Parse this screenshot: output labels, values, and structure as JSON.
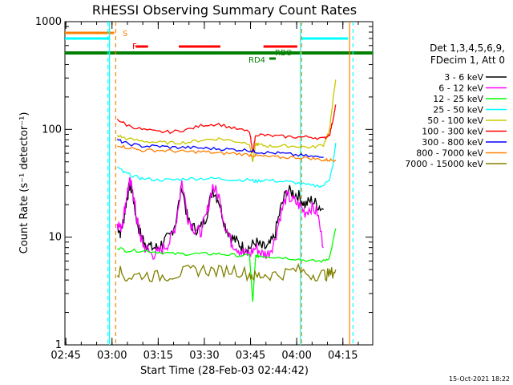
{
  "chart_data": {
    "type": "line",
    "title": "RHESSI Observing Summary Count Rates",
    "xlabel": "Start Time (28-Feb-03 02:44:42)",
    "ylabel": "Count Rate (s⁻¹ detector⁻¹)",
    "y_scale": "log",
    "ylim": [
      1,
      1000
    ],
    "xlim_minutes": [
      0,
      100
    ],
    "x_ticks": [
      {
        "minute": 0.3,
        "label": "02:45"
      },
      {
        "minute": 15.3,
        "label": "03:00"
      },
      {
        "minute": 30.3,
        "label": "03:15"
      },
      {
        "minute": 45.3,
        "label": "03:30"
      },
      {
        "minute": 60.3,
        "label": "03:45"
      },
      {
        "minute": 75.3,
        "label": "04:00"
      },
      {
        "minute": 90.3,
        "label": "04:15"
      }
    ],
    "y_ticks": [
      {
        "value": 1,
        "label": "1"
      },
      {
        "value": 10,
        "label": "10"
      },
      {
        "value": 100,
        "label": "100"
      },
      {
        "value": 1000,
        "label": "1000"
      }
    ],
    "legend_header": [
      "Det 1,3,4,5,6,9,",
      "FDecim 1, Att 0"
    ],
    "legend_placement": "right",
    "series": [
      {
        "name": "3 - 6 keV",
        "color": "#000000",
        "x": [
          17,
          18,
          19,
          20,
          21,
          22,
          23,
          24,
          25,
          26,
          28,
          30,
          32,
          34,
          36,
          38,
          40,
          42,
          44,
          46,
          48,
          50,
          52,
          54,
          56,
          58,
          60,
          62,
          64,
          66,
          68,
          70,
          72,
          74,
          76,
          78,
          80,
          82,
          84
        ],
        "y": [
          13,
          11,
          14,
          22,
          30,
          26,
          16,
          12,
          10,
          9,
          8,
          8,
          9,
          10,
          14,
          30,
          14,
          12,
          12,
          16,
          28,
          22,
          13,
          10,
          9,
          8,
          8,
          9,
          8,
          8,
          10,
          18,
          27,
          26,
          24,
          20,
          22,
          20,
          18
        ]
      },
      {
        "name": "6 - 12 keV",
        "color": "#ff00ff",
        "x": [
          17,
          18,
          19,
          20,
          21,
          22,
          23,
          24,
          25,
          26,
          28,
          30,
          32,
          34,
          36,
          38,
          40,
          42,
          44,
          46,
          48,
          50,
          52,
          54,
          56,
          58,
          60,
          62,
          64,
          66,
          68,
          70,
          72,
          74,
          76,
          78,
          80,
          82,
          84
        ],
        "y": [
          14,
          12,
          15,
          24,
          32,
          28,
          17,
          12,
          9,
          8,
          7,
          7,
          8,
          9,
          13,
          33,
          15,
          12,
          11,
          16,
          30,
          24,
          13,
          9,
          8,
          7,
          7,
          8,
          7,
          7,
          9,
          16,
          24,
          22,
          20,
          17,
          19,
          17,
          8
        ]
      },
      {
        "name": "12 - 25 keV",
        "color": "#00ff00",
        "x": [
          17,
          20,
          25,
          30,
          35,
          40,
          45,
          50,
          55,
          60,
          61,
          62,
          63,
          66,
          70,
          75,
          80,
          84,
          86,
          88
        ],
        "y": [
          8,
          7.5,
          7.5,
          7.3,
          7,
          7,
          7,
          7,
          6.8,
          6.7,
          2.5,
          6.7,
          6.7,
          6.6,
          6.5,
          6.3,
          6,
          6,
          6.5,
          12
        ]
      },
      {
        "name": "25 - 50 keV",
        "color": "#00ffff",
        "x": [
          17,
          19,
          22,
          25,
          30,
          35,
          40,
          45,
          50,
          55,
          60,
          62,
          65,
          70,
          75,
          80,
          84,
          86,
          87,
          88
        ],
        "y": [
          45,
          40,
          37,
          35,
          34,
          34,
          35,
          35,
          35,
          34,
          34,
          33,
          34,
          33,
          32,
          30,
          30,
          35,
          45,
          75
        ]
      },
      {
        "name": "50 - 100 keV",
        "color": "#c8c800",
        "x": [
          17,
          20,
          25,
          30,
          35,
          40,
          45,
          50,
          55,
          60,
          61,
          62,
          63,
          66,
          70,
          75,
          80,
          84,
          86,
          87,
          88
        ],
        "y": [
          88,
          82,
          78,
          76,
          75,
          76,
          80,
          82,
          78,
          74,
          50,
          73,
          72,
          70,
          70,
          70,
          68,
          72,
          100,
          180,
          290
        ]
      },
      {
        "name": "100 - 300 keV",
        "color": "#ff0000",
        "x": [
          17,
          20,
          25,
          30,
          35,
          40,
          45,
          50,
          55,
          60,
          61,
          62,
          65,
          70,
          75,
          80,
          84,
          86,
          87,
          88
        ],
        "y": [
          125,
          110,
          100,
          95,
          95,
          100,
          110,
          112,
          102,
          95,
          60,
          90,
          88,
          86,
          85,
          85,
          82,
          90,
          120,
          170
        ]
      },
      {
        "name": "300 - 800 keV",
        "color": "#0000ff",
        "x": [
          17,
          20,
          25,
          30,
          35,
          40,
          45,
          50,
          55,
          60,
          62,
          65,
          70,
          75,
          80,
          84
        ],
        "y": [
          80,
          74,
          70,
          70,
          68,
          68,
          67,
          66,
          65,
          64,
          62,
          61,
          60,
          58,
          56,
          55
        ]
      },
      {
        "name": "800 - 7000 keV",
        "color": "#ff8000",
        "x": [
          17,
          20,
          25,
          30,
          35,
          40,
          45,
          50,
          55,
          60,
          62,
          65,
          70,
          75,
          80,
          84,
          86,
          88
        ],
        "y": [
          72,
          68,
          64,
          64,
          63,
          62,
          62,
          60,
          60,
          58,
          57,
          56,
          55,
          55,
          54,
          52,
          52,
          52
        ]
      },
      {
        "name": "7000 - 15000 keV",
        "color": "#808000",
        "x": [
          17,
          20,
          25,
          30,
          35,
          40,
          45,
          50,
          55,
          60,
          62,
          65,
          70,
          75,
          80,
          84,
          86,
          88
        ],
        "y": [
          5,
          4.2,
          4.5,
          4.3,
          4.5,
          4.8,
          5,
          4.8,
          5,
          4.5,
          4.3,
          4.5,
          4.5,
          5,
          4.5,
          4.5,
          4.5,
          5
        ]
      }
    ],
    "annotations": [
      {
        "label": "S",
        "color": "#ff8000"
      },
      {
        "label": "F",
        "color": "#ff0000"
      },
      {
        "label": "RD4",
        "color": "#008000"
      },
      {
        "label": "RBO",
        "color": "#008000"
      }
    ],
    "flag_bars": [
      {
        "color": "#ff8000",
        "segments": [
          [
            0,
            16
          ]
        ]
      },
      {
        "color": "#00ffff",
        "segments": [
          [
            0,
            14.5
          ],
          [
            76.5,
            92
          ]
        ]
      },
      {
        "color": "#ff0000",
        "segments": [
          [
            23,
            27
          ],
          [
            37,
            50.5
          ],
          [
            64.5,
            75.5
          ]
        ]
      },
      {
        "color": "#008000",
        "segments": [
          [
            0,
            100
          ]
        ]
      }
    ]
  },
  "footer": {
    "timestamp": "15-Oct-2021 18:22"
  }
}
